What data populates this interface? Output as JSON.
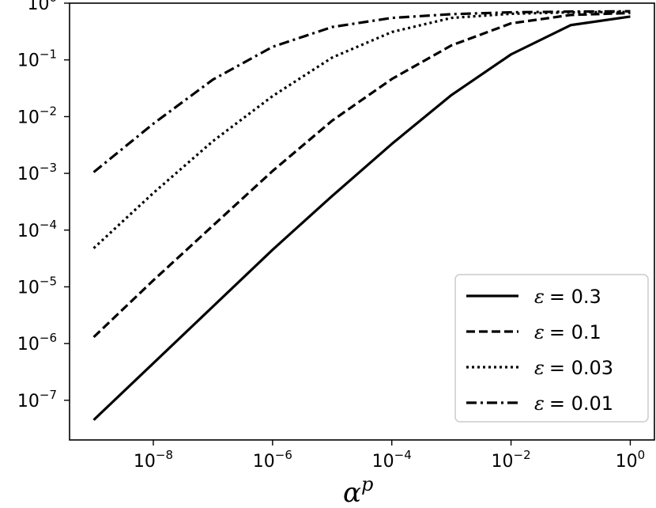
{
  "chart_data": {
    "type": "line",
    "title": "",
    "xlabel": "α",
    "xlabel_superscript": "p",
    "ylabel": "",
    "xscale": "log",
    "yscale": "log",
    "xlim": [
      1e-09,
      1
    ],
    "ylim": [
      2e-08,
      1
    ],
    "grid": false,
    "legend_position": "lower-right",
    "x_ticks": [
      {
        "base": "10",
        "exp": "−8",
        "value": 1e-08
      },
      {
        "base": "10",
        "exp": "−6",
        "value": 1e-06
      },
      {
        "base": "10",
        "exp": "−4",
        "value": 0.0001
      },
      {
        "base": "10",
        "exp": "−2",
        "value": 0.01
      },
      {
        "base": "10",
        "exp": "0",
        "value": 1
      }
    ],
    "y_ticks": [
      {
        "base": "10",
        "exp": "0",
        "value": 1
      },
      {
        "base": "10",
        "exp": "−1",
        "value": 0.1
      },
      {
        "base": "10",
        "exp": "−2",
        "value": 0.01
      },
      {
        "base": "10",
        "exp": "−3",
        "value": 0.001
      },
      {
        "base": "10",
        "exp": "−4",
        "value": 0.0001
      },
      {
        "base": "10",
        "exp": "−5",
        "value": 1e-05
      },
      {
        "base": "10",
        "exp": "−6",
        "value": 1e-06
      },
      {
        "base": "10",
        "exp": "−7",
        "value": 1e-07
      }
    ],
    "x": [
      1e-09,
      1e-08,
      1e-07,
      1e-06,
      1e-05,
      0.0001,
      0.001,
      0.01,
      0.1,
      1
    ],
    "series": [
      {
        "name": "ε = 0.3",
        "symbol": "ε",
        "value_text": "= 0.3",
        "style": "solid",
        "values": [
          4.5e-08,
          4.5e-07,
          4.5e-06,
          4.5e-05,
          0.0004,
          0.0033,
          0.024,
          0.125,
          0.41,
          0.58
        ]
      },
      {
        "name": "ε = 0.1",
        "symbol": "ε",
        "value_text": "= 0.1",
        "style": "dashed",
        "values": [
          1.3e-06,
          1.3e-05,
          0.00012,
          0.0011,
          0.0085,
          0.046,
          0.18,
          0.44,
          0.62,
          0.67
        ]
      },
      {
        "name": "ε = 0.03",
        "symbol": "ε",
        "value_text": "= 0.03",
        "style": "dotted",
        "values": [
          4.8e-05,
          0.00045,
          0.0037,
          0.023,
          0.11,
          0.31,
          0.55,
          0.65,
          0.69,
          0.7
        ]
      },
      {
        "name": "ε = 0.01",
        "symbol": "ε",
        "value_text": "= 0.01",
        "style": "dashdot",
        "values": [
          0.00105,
          0.0075,
          0.045,
          0.17,
          0.38,
          0.55,
          0.64,
          0.69,
          0.71,
          0.72
        ]
      }
    ]
  }
}
